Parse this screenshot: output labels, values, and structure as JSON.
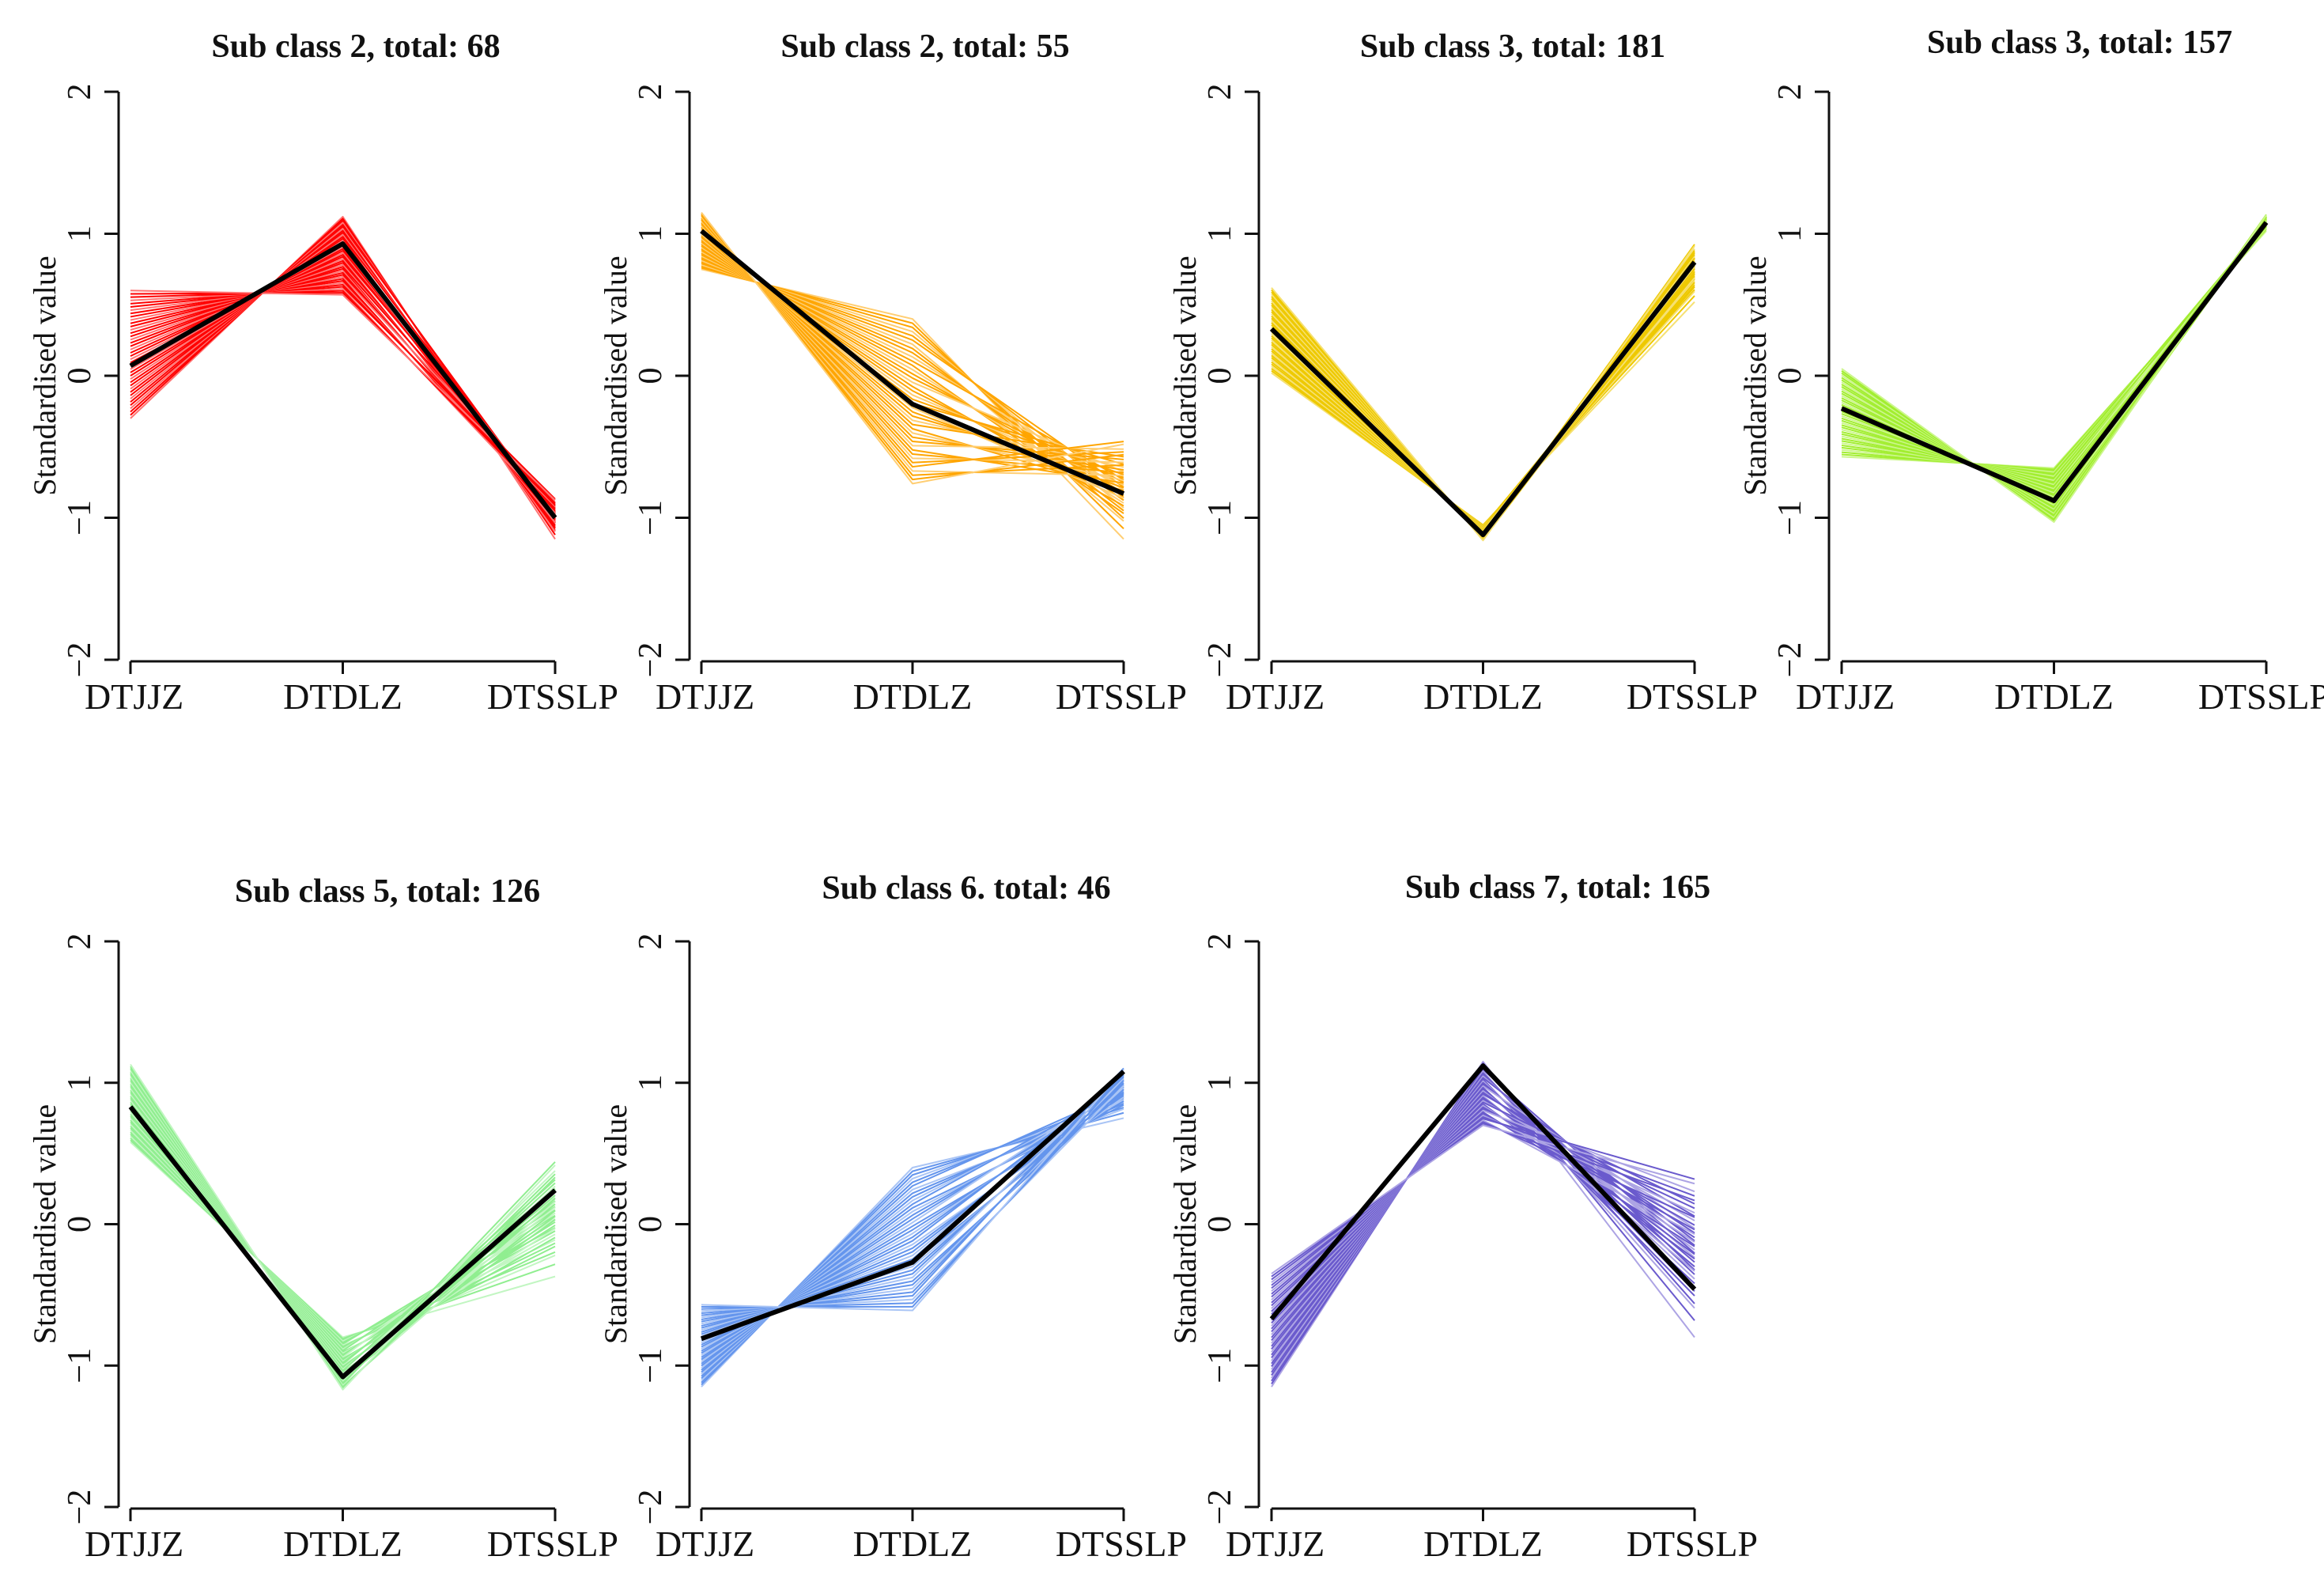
{
  "chart_data": [
    {
      "type": "line",
      "title": "Sub class 2, total: 68",
      "color": "#ff0000",
      "ylabel": "Standardised value",
      "categories": [
        "DTJJZ",
        "DTDLZ",
        "DTSSLP"
      ],
      "yticks": [
        "2",
        "1",
        "0",
        "−1",
        "−2"
      ],
      "ylim": [
        -2,
        2
      ],
      "mean": [
        0.07,
        0.93,
        -1.0
      ],
      "ranges": [
        [
          -0.3,
          0.6
        ],
        [
          0.57,
          1.12
        ],
        [
          -1.15,
          -0.83
        ]
      ]
    },
    {
      "type": "line",
      "title": "Sub class 2, total: 55",
      "color": "#ffa500",
      "ylabel": "Standardised value",
      "categories": [
        "DTJJZ",
        "DTDLZ",
        "DTSSLP"
      ],
      "yticks": [
        "2",
        "1",
        "0",
        "−1",
        "−2"
      ],
      "ylim": [
        -2,
        2
      ],
      "mean": [
        1.02,
        -0.2,
        -0.83
      ],
      "ranges": [
        [
          0.75,
          1.15
        ],
        [
          -0.76,
          0.4
        ],
        [
          -1.15,
          -0.37
        ]
      ]
    },
    {
      "type": "line",
      "title": "Sub class 3, total: 181",
      "color": "#eec900",
      "ylabel": "Standardised value",
      "categories": [
        "DTJJZ",
        "DTDLZ",
        "DTSSLP"
      ],
      "yticks": [
        "2",
        "1",
        "0",
        "−1",
        "−2"
      ],
      "ylim": [
        -2,
        2
      ],
      "mean": [
        0.33,
        -1.12,
        0.8
      ],
      "ranges": [
        [
          0.02,
          0.62
        ],
        [
          -1.16,
          -1.05
        ],
        [
          0.52,
          0.98
        ]
      ]
    },
    {
      "type": "line",
      "title": "Sub class 3, total: 157",
      "color": "#a2ee30",
      "ylabel": "Standardised value",
      "categories": [
        "DTJJZ",
        "DTDLZ",
        "DTSSLP"
      ],
      "yticks": [
        "2",
        "1",
        "0",
        "−1",
        "−2"
      ],
      "ylim": [
        -2,
        2
      ],
      "mean": [
        -0.23,
        -0.88,
        1.08
      ],
      "ranges": [
        [
          -0.57,
          0.05
        ],
        [
          -1.03,
          -0.65
        ],
        [
          1.02,
          1.15
        ]
      ]
    },
    {
      "type": "line",
      "title": "Sub class 5, total: 126",
      "color": "#90ee90",
      "ylabel": "Standardised value",
      "categories": [
        "DTJJZ",
        "DTDLZ",
        "DTSSLP"
      ],
      "yticks": [
        "2",
        "1",
        "0",
        "−1",
        "−2"
      ],
      "ylim": [
        -2,
        2
      ],
      "mean": [
        0.83,
        -1.08,
        0.24
      ],
      "ranges": [
        [
          0.58,
          1.13
        ],
        [
          -1.17,
          -0.8
        ],
        [
          -0.37,
          0.55
        ]
      ]
    },
    {
      "type": "line",
      "title": "Sub class 6. total: 46",
      "color": "#6495ed",
      "ylabel": "Standardised value",
      "categories": [
        "DTJJZ",
        "DTDLZ",
        "DTSSLP"
      ],
      "yticks": [
        "2",
        "1",
        "0",
        "−1",
        "−2"
      ],
      "ylim": [
        -2,
        2
      ],
      "mean": [
        -0.81,
        -0.27,
        1.08
      ],
      "ranges": [
        [
          -1.15,
          -0.57
        ],
        [
          -0.61,
          0.4
        ],
        [
          0.75,
          1.15
        ]
      ]
    },
    {
      "type": "line",
      "title": "Sub class 7, total: 165",
      "color": "#6a5acd",
      "ylabel": "Standardised value",
      "categories": [
        "DTJJZ",
        "DTDLZ",
        "DTSSLP"
      ],
      "yticks": [
        "2",
        "1",
        "0",
        "−1",
        "−2"
      ],
      "ylim": [
        -2,
        2
      ],
      "mean": [
        -0.67,
        1.12,
        -0.46
      ],
      "ranges": [
        [
          -1.15,
          -0.35
        ],
        [
          0.7,
          1.15
        ],
        [
          -0.8,
          0.47
        ]
      ]
    }
  ]
}
